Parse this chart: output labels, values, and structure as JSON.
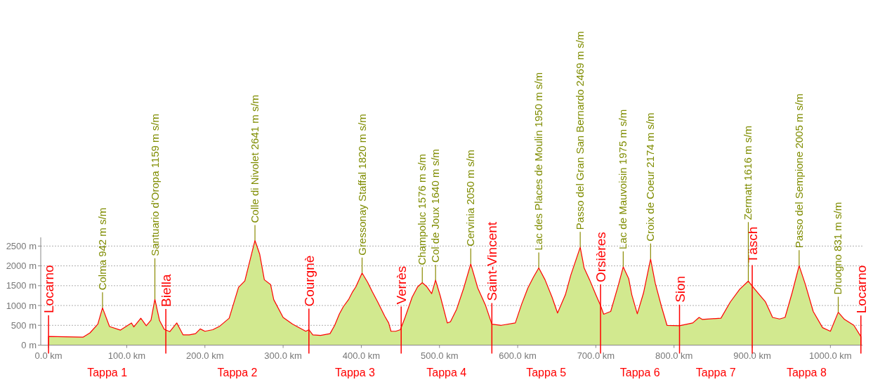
{
  "chart_data": {
    "type": "area",
    "x": [
      0,
      44,
      53,
      63,
      69,
      78,
      92,
      106,
      109,
      118,
      125,
      131,
      136,
      142,
      148,
      155,
      164,
      172,
      180,
      188,
      194,
      200,
      210,
      219,
      231,
      243,
      251,
      264,
      270,
      276,
      284,
      288,
      300,
      312,
      329,
      333,
      338,
      348,
      360,
      366,
      372,
      377,
      384,
      389,
      393,
      401,
      408,
      414,
      421,
      430,
      435,
      438,
      444,
      450,
      456,
      465,
      472,
      478,
      484,
      490,
      495,
      501,
      510,
      514,
      522,
      531,
      540,
      549,
      559,
      567,
      579,
      597,
      605,
      613,
      620,
      627,
      635,
      644,
      651,
      661,
      668,
      680,
      685,
      692,
      700,
      706,
      710,
      719,
      729,
      735,
      742,
      746,
      753,
      761,
      770,
      776,
      784,
      791,
      807,
      824,
      832,
      836,
      860,
      872,
      884,
      895,
      900,
      908,
      917,
      924,
      926,
      935,
      942,
      951,
      960,
      968,
      978,
      990,
      1000,
      1010,
      1018,
      1030,
      1039
    ],
    "series": [
      {
        "color": "#d2e98f",
        "values": [
          220,
          200,
          310,
          530,
          942,
          470,
          380,
          560,
          460,
          680,
          490,
          630,
          1159,
          620,
          400,
          340,
          560,
          260,
          260,
          290,
          410,
          350,
          390,
          480,
          680,
          1460,
          1620,
          2641,
          2300,
          1650,
          1530,
          1150,
          700,
          530,
          350,
          390,
          260,
          245,
          290,
          500,
          790,
          970,
          1160,
          1350,
          1470,
          1820,
          1590,
          1350,
          1090,
          730,
          560,
          350,
          350,
          390,
          700,
          1210,
          1470,
          1576,
          1470,
          1300,
          1640,
          1240,
          560,
          590,
          910,
          1440,
          2050,
          1440,
          1000,
          530,
          500,
          560,
          1030,
          1440,
          1710,
          1950,
          1650,
          1210,
          810,
          1270,
          1770,
          2469,
          1950,
          1650,
          1270,
          1000,
          780,
          850,
          1530,
          1975,
          1680,
          1270,
          790,
          1320,
          2174,
          1560,
          970,
          500,
          490,
          560,
          700,
          650,
          680,
          1090,
          1410,
          1616,
          1490,
          1300,
          1090,
          790,
          700,
          660,
          700,
          1320,
          2005,
          1530,
          850,
          440,
          350,
          831,
          650,
          500,
          215
        ]
      }
    ],
    "xlim": [
      -10,
      1041
    ],
    "ylim": [
      0,
      2720
    ],
    "xticks": [
      {
        "value": 0,
        "label": "0.0 km"
      },
      {
        "value": 100,
        "label": "100.0 km"
      },
      {
        "value": 200,
        "label": "200.0 km"
      },
      {
        "value": 300,
        "label": "300.0 km"
      },
      {
        "value": 400,
        "label": "400.0 km"
      },
      {
        "value": 500,
        "label": "500.0 km"
      },
      {
        "value": 600,
        "label": "600.0 km"
      },
      {
        "value": 700,
        "label": "700.0 km"
      },
      {
        "value": 800,
        "label": "800.0 km"
      },
      {
        "value": 900,
        "label": "900.0 km"
      },
      {
        "value": 1000,
        "label": "1000.0 km"
      }
    ],
    "yticks": [
      {
        "value": 0,
        "label": "0 m"
      },
      {
        "value": 500,
        "label": "500 m"
      },
      {
        "value": 1000,
        "label": "1000 m"
      },
      {
        "value": 1500,
        "label": "1500 m"
      },
      {
        "value": 2000,
        "label": "2000 m"
      },
      {
        "value": 2500,
        "label": "2500 m"
      }
    ],
    "grid": "y",
    "ref_lines": [
      {
        "axis": "x",
        "value": 0,
        "label": "Locarno",
        "color": "#ff0000"
      },
      {
        "axis": "x",
        "value": 150,
        "label": "Biella",
        "color": "#ff0000"
      },
      {
        "axis": "x",
        "value": 333,
        "label": "Courgnè",
        "color": "#ff0000"
      },
      {
        "axis": "x",
        "value": 451,
        "label": "Verrès",
        "color": "#ff0000"
      },
      {
        "axis": "x",
        "value": 567,
        "label": "Saint-Vincent",
        "color": "#ff0000"
      },
      {
        "axis": "x",
        "value": 706,
        "label": "Orsières",
        "color": "#ff0000"
      },
      {
        "axis": "x",
        "value": 807,
        "label": "Sion",
        "color": "#ff0000"
      },
      {
        "axis": "x",
        "value": 900,
        "label": "Täsch",
        "color": "#ff0000"
      },
      {
        "axis": "x",
        "value": 1039,
        "label": "Locarno",
        "color": "#ff0000"
      }
    ],
    "annotations": [
      {
        "text": "Colma 942 m s/m",
        "x": 69,
        "y": 942
      },
      {
        "text": "Santuario d'Oropa 1159 m s/m",
        "x": 136,
        "y": 1159
      },
      {
        "text": "Colle di Nivolet 2641 m s/m",
        "x": 264,
        "y": 2641
      },
      {
        "text": "Gressonay Staffal 1820 m s/m",
        "x": 401,
        "y": 1820
      },
      {
        "text": "Champoluc 1576 m s/m",
        "x": 478,
        "y": 1576
      },
      {
        "text": "Col de Joux 1640 m s/m",
        "x": 495,
        "y": 1640
      },
      {
        "text": "Cervinia 2050 m s/m",
        "x": 540,
        "y": 2050
      },
      {
        "text": "Lac des Places de Moulin 1950 m s/m",
        "x": 627,
        "y": 1950
      },
      {
        "text": "Passo del Gran San Bernardo 2469 m s/m",
        "x": 680,
        "y": 2469
      },
      {
        "text": "Lac de Mauvoisin 1975 m s/m",
        "x": 735,
        "y": 1975
      },
      {
        "text": "Croix de Coeur 2174 m s/m",
        "x": 770,
        "y": 2174
      },
      {
        "text": "Zermatt 1616 m s/m",
        "x": 895,
        "y": 1616
      },
      {
        "text": "Passo del Sempione 2005 m s/m",
        "x": 960,
        "y": 2005
      },
      {
        "text": "Druogno 831 m s/m",
        "x": 1010,
        "y": 831
      },
      "Tappa 1",
      "Tappa 2",
      "Tappa 3",
      "Tappa 4",
      "Tappa 5",
      "Tappa 6",
      "Tappa 7",
      "Tappa 8"
    ]
  }
}
